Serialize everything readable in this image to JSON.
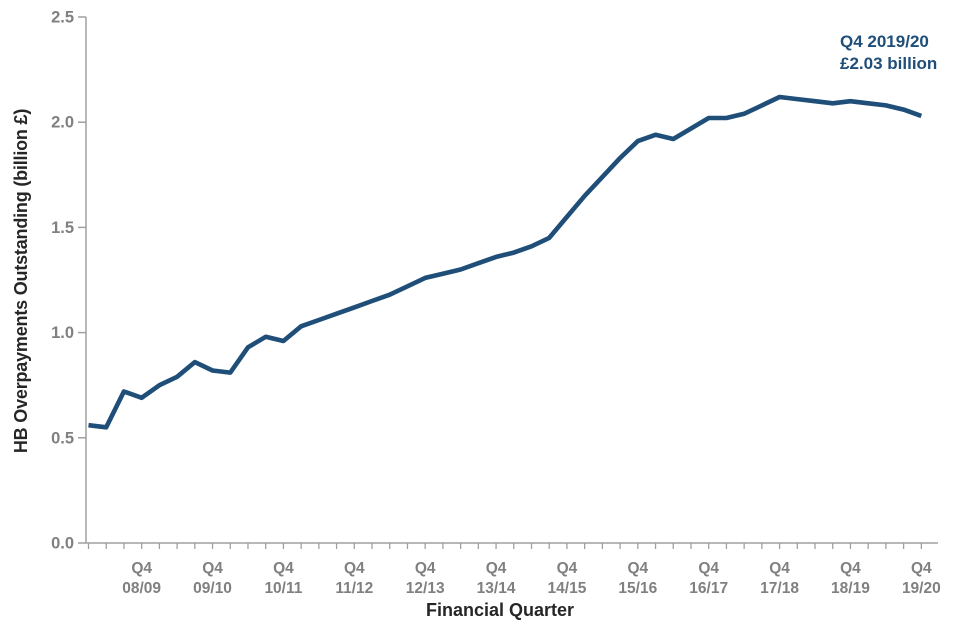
{
  "chart_data": {
    "type": "line",
    "title": "",
    "xlabel": "Financial Quarter",
    "ylabel": "HB Overpayments Outstanding (billion £)",
    "series_name": "HB overpayments outstanding",
    "x": [
      "Q1 2008/09",
      "Q2 2008/09",
      "Q3 2008/09",
      "Q4 2008/09",
      "Q1 2009/10",
      "Q2 2009/10",
      "Q3 2009/10",
      "Q4 2009/10",
      "Q1 2010/11",
      "Q2 2010/11",
      "Q3 2010/11",
      "Q4 2010/11",
      "Q1 2011/12",
      "Q2 2011/12",
      "Q3 2011/12",
      "Q4 2011/12",
      "Q1 2012/13",
      "Q2 2012/13",
      "Q3 2012/13",
      "Q4 2012/13",
      "Q1 2013/14",
      "Q2 2013/14",
      "Q3 2013/14",
      "Q4 2013/14",
      "Q1 2014/15",
      "Q2 2014/15",
      "Q3 2014/15",
      "Q4 2014/15",
      "Q1 2015/16",
      "Q2 2015/16",
      "Q3 2015/16",
      "Q4 2015/16",
      "Q1 2016/17",
      "Q2 2016/17",
      "Q3 2016/17",
      "Q4 2016/17",
      "Q1 2017/18",
      "Q2 2017/18",
      "Q3 2017/18",
      "Q4 2017/18",
      "Q1 2018/19",
      "Q2 2018/19",
      "Q3 2018/19",
      "Q4 2018/19",
      "Q1 2019/20",
      "Q2 2019/20",
      "Q3 2019/20",
      "Q4 2019/20"
    ],
    "values": [
      0.56,
      0.55,
      0.72,
      0.69,
      0.75,
      0.79,
      0.86,
      0.82,
      0.81,
      0.93,
      0.98,
      0.96,
      1.03,
      1.06,
      1.09,
      1.12,
      1.15,
      1.18,
      1.22,
      1.26,
      1.28,
      1.3,
      1.33,
      1.36,
      1.38,
      1.41,
      1.45,
      1.55,
      1.65,
      1.74,
      1.83,
      1.91,
      1.94,
      1.92,
      1.97,
      2.02,
      2.02,
      2.04,
      2.08,
      2.12,
      2.11,
      2.1,
      2.09,
      2.1,
      2.09,
      2.08,
      2.06,
      2.03
    ],
    "ylim": [
      0,
      2.5
    ],
    "yticks": [
      0.0,
      0.5,
      1.0,
      1.5,
      2.0,
      2.5
    ],
    "ytick_labels": [
      "0.0",
      "0.5",
      "1.0",
      "1.5",
      "2.0",
      "2.5"
    ],
    "x_major_labels": [
      {
        "index": 3,
        "line1": "Q4",
        "line2": "08/09"
      },
      {
        "index": 7,
        "line1": "Q4",
        "line2": "09/10"
      },
      {
        "index": 11,
        "line1": "Q4",
        "line2": "10/11"
      },
      {
        "index": 15,
        "line1": "Q4",
        "line2": "11/12"
      },
      {
        "index": 19,
        "line1": "Q4",
        "line2": "12/13"
      },
      {
        "index": 23,
        "line1": "Q4",
        "line2": "13/14"
      },
      {
        "index": 27,
        "line1": "Q4",
        "line2": "14/15"
      },
      {
        "index": 31,
        "line1": "Q4",
        "line2": "15/16"
      },
      {
        "index": 35,
        "line1": "Q4",
        "line2": "16/17"
      },
      {
        "index": 39,
        "line1": "Q4",
        "line2": "17/18"
      },
      {
        "index": 43,
        "line1": "Q4",
        "line2": "18/19"
      },
      {
        "index": 47,
        "line1": "Q4",
        "line2": "19/20"
      }
    ],
    "grid": false,
    "legend_position": "none",
    "annotation": {
      "line1": "Q4 2019/20",
      "line2": "£2.03 billion"
    },
    "colors": {
      "line": "#1F4E79",
      "annotation": "#1F4E79",
      "axis": "#A0A0A0",
      "tick_label": "#808080",
      "axis_title": "#262626"
    }
  }
}
